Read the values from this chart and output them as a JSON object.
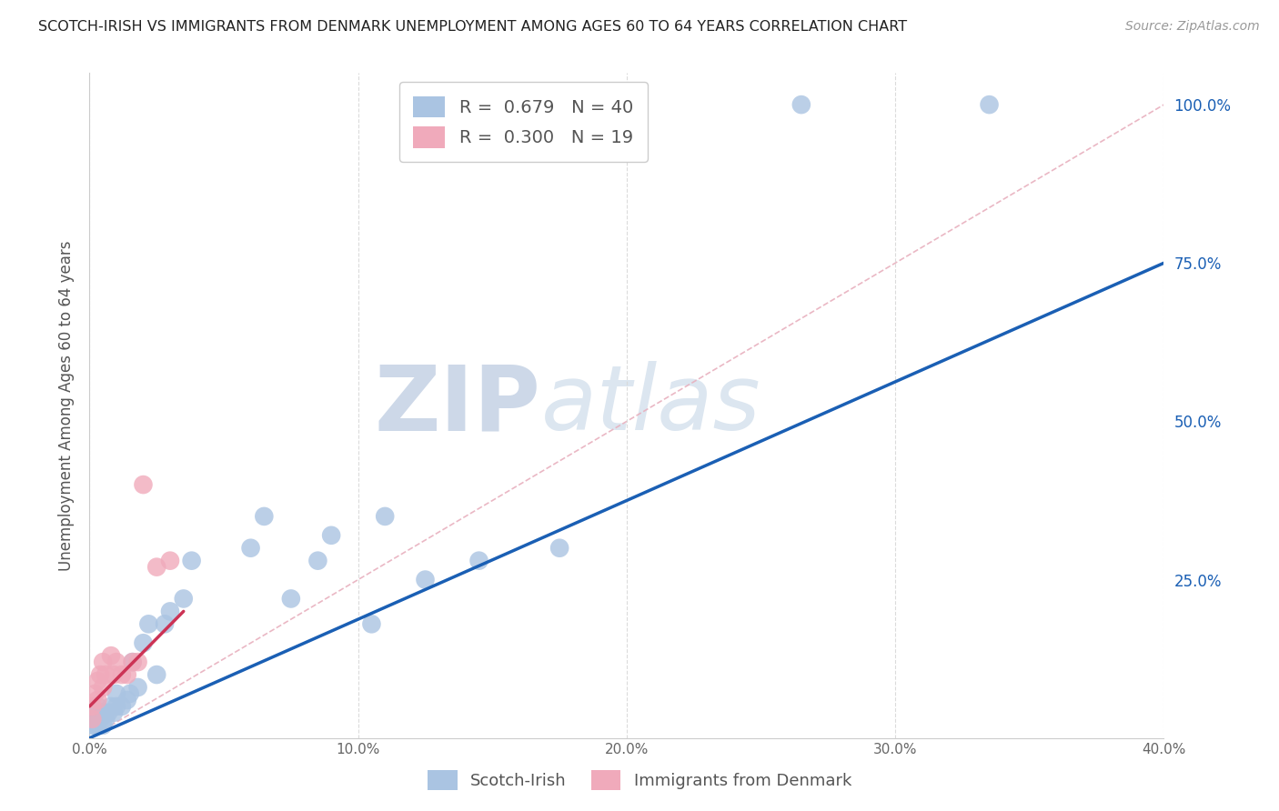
{
  "title": "SCOTCH-IRISH VS IMMIGRANTS FROM DENMARK UNEMPLOYMENT AMONG AGES 60 TO 64 YEARS CORRELATION CHART",
  "source": "Source: ZipAtlas.com",
  "ylabel": "Unemployment Among Ages 60 to 64 years",
  "xmin": 0.0,
  "xmax": 0.4,
  "ymin": 0.0,
  "ymax": 1.05,
  "x_tick_labels": [
    "0.0%",
    "10.0%",
    "20.0%",
    "30.0%",
    "40.0%"
  ],
  "x_tick_values": [
    0.0,
    0.1,
    0.2,
    0.3,
    0.4
  ],
  "y_tick_labels": [
    "25.0%",
    "50.0%",
    "75.0%",
    "100.0%"
  ],
  "y_tick_values": [
    0.25,
    0.5,
    0.75,
    1.0
  ],
  "blue_R": 0.679,
  "blue_N": 40,
  "pink_R": 0.3,
  "pink_N": 19,
  "blue_color": "#aac4e2",
  "blue_line_color": "#1a5fb4",
  "pink_color": "#f0aabb",
  "pink_line_color": "#cc3355",
  "diag_line_color": "#e8b0be",
  "watermark_zip": "ZIP",
  "watermark_atlas": "atlas",
  "blue_points_x": [
    0.001,
    0.001,
    0.001,
    0.002,
    0.002,
    0.003,
    0.003,
    0.003,
    0.004,
    0.004,
    0.005,
    0.005,
    0.006,
    0.007,
    0.008,
    0.009,
    0.01,
    0.01,
    0.012,
    0.014,
    0.015,
    0.016,
    0.018,
    0.02,
    0.022,
    0.025,
    0.028,
    0.03,
    0.035,
    0.038,
    0.06,
    0.065,
    0.075,
    0.085,
    0.09,
    0.105,
    0.11,
    0.125,
    0.145,
    0.175
  ],
  "blue_points_y": [
    0.02,
    0.03,
    0.04,
    0.02,
    0.03,
    0.02,
    0.03,
    0.05,
    0.03,
    0.04,
    0.02,
    0.04,
    0.03,
    0.04,
    0.05,
    0.04,
    0.05,
    0.07,
    0.05,
    0.06,
    0.07,
    0.12,
    0.08,
    0.15,
    0.18,
    0.1,
    0.18,
    0.2,
    0.22,
    0.28,
    0.3,
    0.35,
    0.22,
    0.28,
    0.32,
    0.18,
    0.35,
    0.25,
    0.28,
    0.3
  ],
  "pink_points_x": [
    0.001,
    0.001,
    0.002,
    0.003,
    0.003,
    0.004,
    0.005,
    0.005,
    0.006,
    0.008,
    0.009,
    0.01,
    0.012,
    0.014,
    0.016,
    0.018,
    0.02,
    0.025,
    0.03
  ],
  "pink_points_y": [
    0.03,
    0.05,
    0.07,
    0.06,
    0.09,
    0.1,
    0.08,
    0.12,
    0.1,
    0.13,
    0.1,
    0.12,
    0.1,
    0.1,
    0.12,
    0.12,
    0.4,
    0.27,
    0.28
  ],
  "blue_line_x": [
    0.0,
    0.4
  ],
  "blue_line_y": [
    0.0,
    0.75
  ],
  "pink_line_x": [
    0.0,
    0.035
  ],
  "pink_line_y": [
    0.05,
    0.2
  ],
  "diag_line_x": [
    0.0,
    0.4
  ],
  "diag_line_y": [
    0.0,
    1.0
  ],
  "legend_label_blue": "Scotch-Irish",
  "legend_label_pink": "Immigrants from Denmark",
  "background_color": "#ffffff",
  "grid_color": "#d8d8d8",
  "top_blue_points_x": [
    0.265,
    0.335
  ],
  "top_blue_points_y": [
    1.0,
    1.0
  ]
}
